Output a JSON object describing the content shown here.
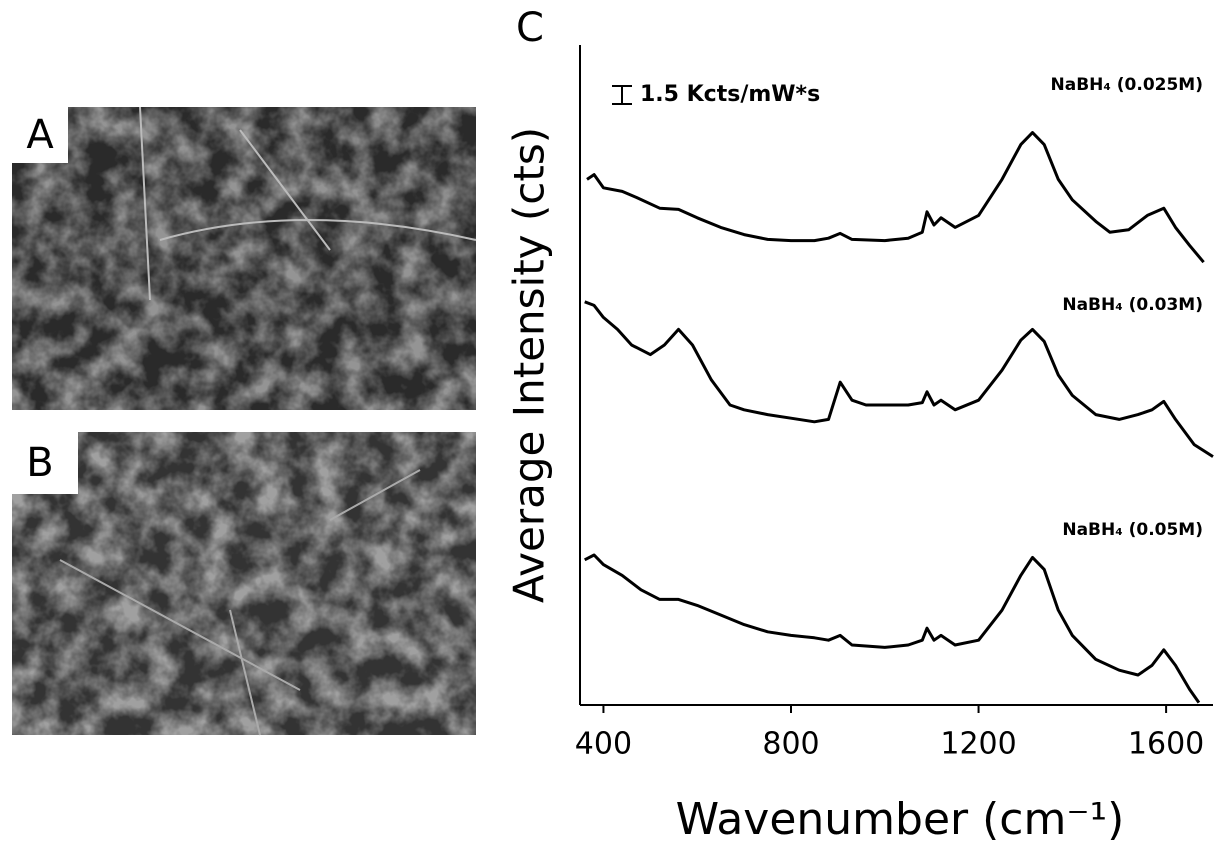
{
  "panels": {
    "a": "A",
    "b": "B"
  },
  "chart_data": {
    "type": "line",
    "panel_label": "C",
    "x_label": "Wavenumber (cm⁻¹)",
    "y_label": "Average Intensity (cts)",
    "scale_bar": {
      "value": 1.5,
      "label": "1.5 Kcts/mW*s"
    },
    "xlim": [
      350,
      1700
    ],
    "xticks": [
      400,
      800,
      1200,
      1600
    ],
    "ylim": [
      0,
      55
    ],
    "series": [
      {
        "name": "NaBH₄ (0.025M)",
        "color": "#000000",
        "x": [
          365,
          380,
          400,
          440,
          470,
          520,
          560,
          600,
          650,
          700,
          750,
          800,
          850,
          880,
          905,
          930,
          1000,
          1050,
          1080,
          1090,
          1105,
          1120,
          1150,
          1200,
          1250,
          1290,
          1315,
          1340,
          1370,
          1400,
          1450,
          1480,
          1520,
          1560,
          1595,
          1620,
          1650,
          1680
        ],
        "values": [
          43.8,
          44.2,
          43.1,
          42.8,
          42.3,
          41.4,
          41.3,
          40.6,
          39.8,
          39.2,
          38.8,
          38.7,
          38.7,
          38.9,
          39.3,
          38.8,
          38.7,
          38.9,
          39.4,
          41.1,
          40.0,
          40.6,
          39.8,
          40.8,
          43.8,
          46.7,
          47.7,
          46.7,
          43.8,
          42.1,
          40.3,
          39.4,
          39.6,
          40.8,
          41.4,
          39.8,
          38.3,
          36.9
        ]
      },
      {
        "name": "NaBH₄ (0.03M)",
        "color": "#000000",
        "x": [
          360,
          380,
          400,
          430,
          460,
          500,
          530,
          560,
          590,
          630,
          670,
          700,
          750,
          800,
          850,
          880,
          905,
          930,
          960,
          1000,
          1050,
          1080,
          1090,
          1105,
          1120,
          1150,
          1200,
          1250,
          1290,
          1315,
          1340,
          1370,
          1400,
          1450,
          1500,
          1540,
          1570,
          1595,
          1620,
          1660,
          1700
        ],
        "values": [
          33.6,
          33.3,
          32.3,
          31.3,
          30.0,
          29.2,
          30.0,
          31.3,
          30.0,
          27.1,
          25.0,
          24.6,
          24.2,
          23.9,
          23.6,
          23.8,
          26.9,
          25.4,
          25.0,
          25.0,
          25.0,
          25.2,
          26.1,
          25.0,
          25.4,
          24.6,
          25.4,
          27.9,
          30.4,
          31.3,
          30.3,
          27.5,
          25.8,
          24.2,
          23.8,
          24.2,
          24.6,
          25.3,
          23.8,
          21.7,
          20.7
        ]
      },
      {
        "name": "NaBH₄ (0.05M)",
        "color": "#000000",
        "x": [
          360,
          380,
          400,
          440,
          480,
          520,
          560,
          600,
          650,
          700,
          750,
          800,
          850,
          880,
          905,
          930,
          1000,
          1050,
          1080,
          1090,
          1105,
          1120,
          1150,
          1200,
          1250,
          1290,
          1315,
          1340,
          1370,
          1400,
          1450,
          1500,
          1540,
          1570,
          1595,
          1620,
          1650,
          1670
        ],
        "values": [
          12.1,
          12.5,
          11.7,
          10.8,
          9.6,
          8.8,
          8.8,
          8.3,
          7.5,
          6.7,
          6.1,
          5.8,
          5.6,
          5.4,
          5.8,
          5.0,
          4.8,
          5.0,
          5.4,
          6.4,
          5.4,
          5.8,
          5.0,
          5.4,
          7.9,
          10.8,
          12.3,
          11.3,
          7.9,
          5.8,
          3.8,
          2.9,
          2.5,
          3.3,
          4.6,
          3.3,
          1.3,
          0.2
        ]
      }
    ]
  }
}
